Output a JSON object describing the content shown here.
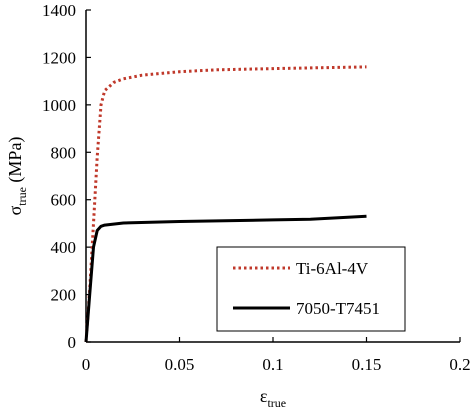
{
  "chart_data": {
    "type": "line",
    "xlabel": {
      "symbol": "ε",
      "subscript": "true"
    },
    "ylabel": {
      "symbol": "σ",
      "subscript": "true",
      "unit": " (MPa)"
    },
    "xlim": [
      0,
      0.2
    ],
    "ylim": [
      0,
      1400
    ],
    "x_ticks": [
      "0",
      "0.05",
      "0.1",
      "0.15",
      "0.2"
    ],
    "y_ticks": [
      "0",
      "200",
      "400",
      "600",
      "800",
      "1000",
      "1200",
      "1400"
    ],
    "grid": false,
    "legend_position": "bottom-right",
    "series": [
      {
        "name": "Ti-6Al-4V",
        "color": "#c0392b",
        "style": "dotted",
        "x": [
          0,
          0.002,
          0.004,
          0.006,
          0.008,
          0.01,
          0.015,
          0.02,
          0.03,
          0.05,
          0.07,
          0.1,
          0.12,
          0.15
        ],
        "y": [
          0,
          220,
          500,
          780,
          1000,
          1060,
          1095,
          1110,
          1125,
          1140,
          1148,
          1153,
          1156,
          1160
        ]
      },
      {
        "name": "7050-T7451",
        "color": "#000000",
        "style": "solid",
        "x": [
          0,
          0.002,
          0.004,
          0.006,
          0.008,
          0.01,
          0.02,
          0.05,
          0.1,
          0.12,
          0.15
        ],
        "y": [
          0,
          200,
          400,
          470,
          488,
          493,
          502,
          508,
          515,
          518,
          530
        ]
      }
    ]
  }
}
